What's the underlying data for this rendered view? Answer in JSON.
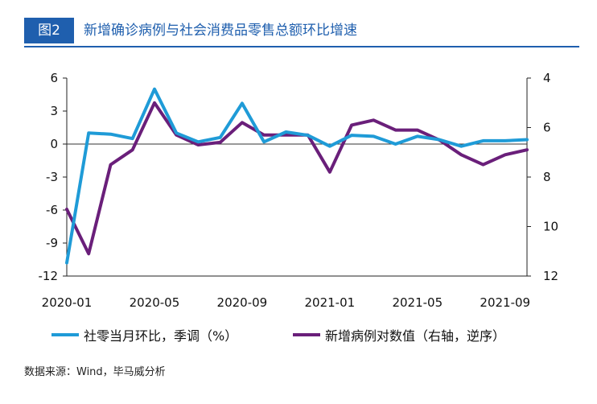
{
  "header": {
    "figure_label": "图2",
    "title": "新增确诊病例与社会消费品零售总额环比增速"
  },
  "source": "数据来源：Wind，毕马威分析",
  "chart_data": {
    "type": "line",
    "title": "新增确诊病例与社会消费品零售总额环比增速",
    "x": [
      "2020-01",
      "2020-02",
      "2020-03",
      "2020-04",
      "2020-05",
      "2020-06",
      "2020-07",
      "2020-08",
      "2020-09",
      "2020-10",
      "2020-11",
      "2020-12",
      "2021-01",
      "2021-02",
      "2021-03",
      "2021-04",
      "2021-05",
      "2021-06",
      "2021-07",
      "2021-08",
      "2021-09",
      "2021-10"
    ],
    "x_tick_labels": [
      "2020-01",
      "2020-05",
      "2020-09",
      "2021-01",
      "2021-05",
      "2021-09"
    ],
    "y_left": {
      "lim": [
        -12,
        6
      ],
      "ticks": [
        "6",
        "3",
        "0",
        "-3",
        "-6",
        "-9",
        "-12"
      ]
    },
    "y_right": {
      "lim": [
        4,
        12
      ],
      "inverted": true,
      "ticks": [
        "4",
        "6",
        "8",
        "10",
        "12"
      ]
    },
    "grid": false,
    "legend_position": "bottom",
    "series": [
      {
        "name": "社零当月环比，季调（%）",
        "axis": "left",
        "color": "#1f9bd7",
        "values": [
          -10.8,
          1.0,
          0.9,
          0.5,
          5.0,
          1.0,
          0.2,
          0.6,
          3.7,
          0.2,
          1.1,
          0.8,
          -0.2,
          0.8,
          0.7,
          0.0,
          0.7,
          0.4,
          -0.2,
          0.3,
          0.3,
          0.4
        ]
      },
      {
        "name": "新增病例对数值（右轴，逆序）",
        "axis": "right",
        "color": "#6a1f7a",
        "values": [
          9.3,
          11.1,
          7.5,
          6.9,
          5.0,
          6.3,
          6.7,
          6.6,
          5.8,
          6.3,
          6.3,
          6.3,
          7.8,
          5.9,
          5.7,
          6.1,
          6.1,
          6.5,
          7.1,
          7.5,
          7.1,
          6.9
        ]
      }
    ]
  }
}
